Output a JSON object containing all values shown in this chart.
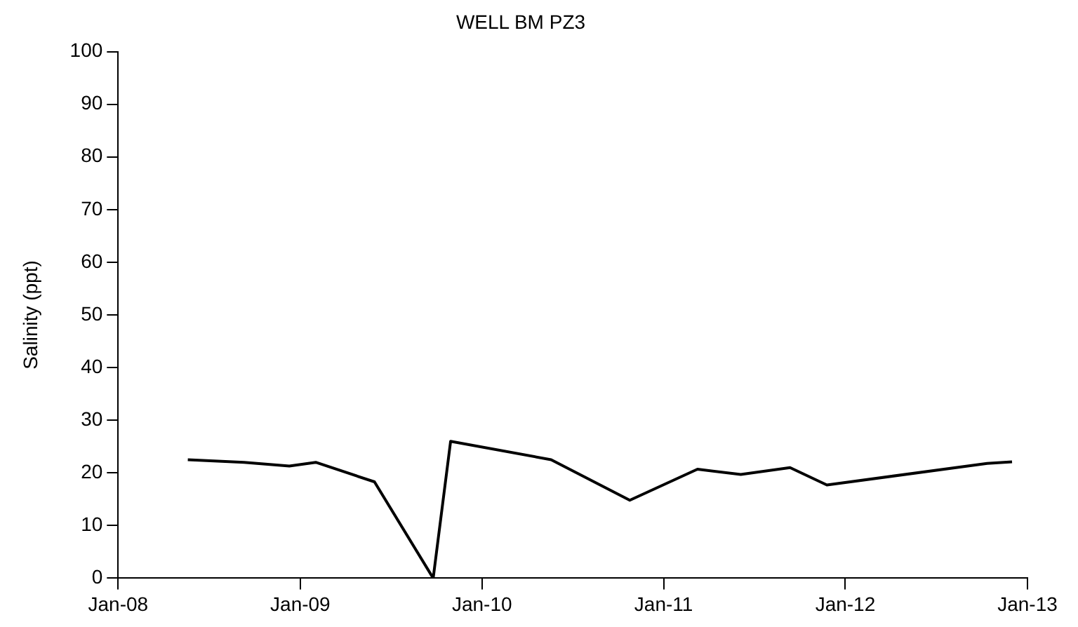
{
  "chart_data": {
    "type": "line",
    "title": "WELL BM PZ3",
    "ylabel": "Salinity (ppt)",
    "x": [
      "2008-05-20",
      "2008-09-10",
      "2008-12-10",
      "2009-02-01",
      "2009-05-30",
      "2009-09-25",
      "2009-10-30",
      "2010-05-20",
      "2010-10-25",
      "2011-03-10",
      "2011-06-05",
      "2011-09-12",
      "2011-11-25",
      "2012-10-12",
      "2012-12-01"
    ],
    "series": [
      {
        "color": "#000000",
        "values": [
          22.5,
          22,
          21.3,
          22,
          18.3,
          0,
          26,
          22.5,
          14.8,
          20.7,
          19.7,
          21,
          17.7,
          21.8,
          22.1
        ]
      }
    ],
    "xlim": [
      "2008-01-01",
      "2013-01-01"
    ],
    "xticks": [
      {
        "value": "2008-01-01",
        "label": "Jan-08"
      },
      {
        "value": "2009-01-01",
        "label": "Jan-09"
      },
      {
        "value": "2010-01-01",
        "label": "Jan-10"
      },
      {
        "value": "2011-01-01",
        "label": "Jan-11"
      },
      {
        "value": "2012-01-01",
        "label": "Jan-12"
      },
      {
        "value": "2013-01-01",
        "label": "Jan-13"
      }
    ],
    "ylim": [
      0,
      100
    ],
    "yticks": [
      0,
      10,
      20,
      30,
      40,
      50,
      60,
      70,
      80,
      90,
      100
    ],
    "grid": false,
    "legend": false,
    "marker": "none",
    "line_style": "solid"
  }
}
